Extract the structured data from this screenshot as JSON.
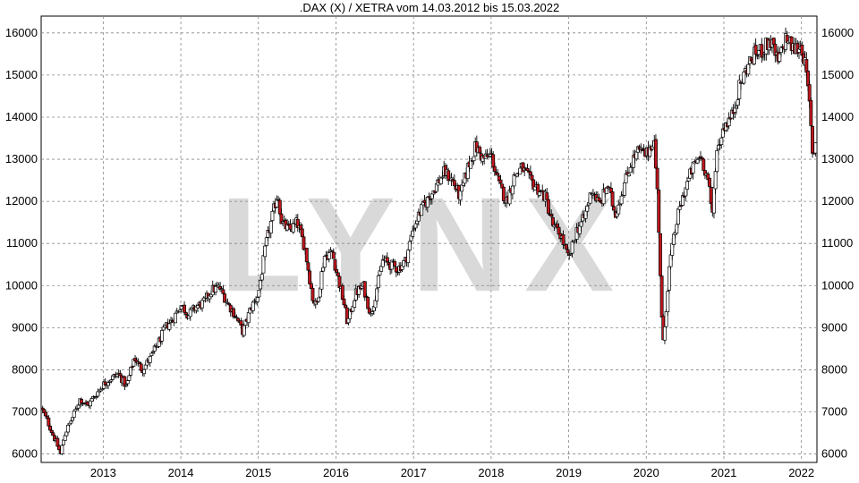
{
  "chart_data": {
    "type": "candlestick",
    "title": ".DAX (X) / XETRA vom 14.03.2012 bis 15.03.2022",
    "watermark": "LYNX",
    "xlabel": "",
    "ylabel": "",
    "xlim": [
      2012.2,
      2022.2
    ],
    "ylim": [
      5800,
      16400
    ],
    "yticks": [
      6000,
      7000,
      8000,
      9000,
      10000,
      11000,
      12000,
      13000,
      14000,
      15000,
      16000
    ],
    "xtick_labels": [
      "2013",
      "2014",
      "2015",
      "2016",
      "2017",
      "2018",
      "2019",
      "2020",
      "2021",
      "2022"
    ],
    "xtick_values": [
      2013,
      2014,
      2015,
      2016,
      2017,
      2018,
      2019,
      2020,
      2021,
      2022
    ],
    "grid": true,
    "y_axis_both_sides": true,
    "up_color": "#ffffff",
    "down_color": "#c0161c",
    "series_close": [
      [
        2012.2,
        7100
      ],
      [
        2012.3,
        6700
      ],
      [
        2012.4,
        6250
      ],
      [
        2012.45,
        6000
      ],
      [
        2012.5,
        6450
      ],
      [
        2012.6,
        6850
      ],
      [
        2012.7,
        7300
      ],
      [
        2012.8,
        7150
      ],
      [
        2012.9,
        7400
      ],
      [
        2013.0,
        7650
      ],
      [
        2013.1,
        7800
      ],
      [
        2013.2,
        7900
      ],
      [
        2013.3,
        7600
      ],
      [
        2013.4,
        8300
      ],
      [
        2013.5,
        8000
      ],
      [
        2013.6,
        8250
      ],
      [
        2013.7,
        8600
      ],
      [
        2013.8,
        9000
      ],
      [
        2013.9,
        9200
      ],
      [
        2014.0,
        9550
      ],
      [
        2014.1,
        9300
      ],
      [
        2014.2,
        9500
      ],
      [
        2014.3,
        9600
      ],
      [
        2014.4,
        9900
      ],
      [
        2014.5,
        9950
      ],
      [
        2014.6,
        9600
      ],
      [
        2014.7,
        9300
      ],
      [
        2014.8,
        8900
      ],
      [
        2014.9,
        9450
      ],
      [
        2015.0,
        9800
      ],
      [
        2015.1,
        11000
      ],
      [
        2015.2,
        11800
      ],
      [
        2015.25,
        12200
      ],
      [
        2015.3,
        11500
      ],
      [
        2015.4,
        11300
      ],
      [
        2015.5,
        11500
      ],
      [
        2015.6,
        10900
      ],
      [
        2015.7,
        9700
      ],
      [
        2015.75,
        9500
      ],
      [
        2015.85,
        10700
      ],
      [
        2015.95,
        10800
      ],
      [
        2016.0,
        10400
      ],
      [
        2016.1,
        9600
      ],
      [
        2016.15,
        9100
      ],
      [
        2016.25,
        9800
      ],
      [
        2016.35,
        10000
      ],
      [
        2016.45,
        9300
      ],
      [
        2016.5,
        9700
      ],
      [
        2016.6,
        10600
      ],
      [
        2016.7,
        10500
      ],
      [
        2016.8,
        10400
      ],
      [
        2016.9,
        10600
      ],
      [
        2017.0,
        11400
      ],
      [
        2017.1,
        11800
      ],
      [
        2017.2,
        12100
      ],
      [
        2017.3,
        12400
      ],
      [
        2017.4,
        12700
      ],
      [
        2017.5,
        12500
      ],
      [
        2017.6,
        12100
      ],
      [
        2017.7,
        12800
      ],
      [
        2017.8,
        13300
      ],
      [
        2017.9,
        13000
      ],
      [
        2018.0,
        13100
      ],
      [
        2018.1,
        12400
      ],
      [
        2018.2,
        12000
      ],
      [
        2018.3,
        12600
      ],
      [
        2018.4,
        12800
      ],
      [
        2018.5,
        12500
      ],
      [
        2018.6,
        12300
      ],
      [
        2018.7,
        12100
      ],
      [
        2018.8,
        11400
      ],
      [
        2018.9,
        11200
      ],
      [
        2019.0,
        10600
      ],
      [
        2019.1,
        11300
      ],
      [
        2019.2,
        11600
      ],
      [
        2019.3,
        12300
      ],
      [
        2019.4,
        11900
      ],
      [
        2019.5,
        12400
      ],
      [
        2019.6,
        11700
      ],
      [
        2019.7,
        12300
      ],
      [
        2019.8,
        12900
      ],
      [
        2019.9,
        13200
      ],
      [
        2020.0,
        13100
      ],
      [
        2020.1,
        13500
      ],
      [
        2020.15,
        12000
      ],
      [
        2020.2,
        9200
      ],
      [
        2020.22,
        8600
      ],
      [
        2020.3,
        10500
      ],
      [
        2020.4,
        11600
      ],
      [
        2020.5,
        12300
      ],
      [
        2020.6,
        12800
      ],
      [
        2020.7,
        13100
      ],
      [
        2020.8,
        12500
      ],
      [
        2020.85,
        11600
      ],
      [
        2020.9,
        13100
      ],
      [
        2021.0,
        13800
      ],
      [
        2021.1,
        14000
      ],
      [
        2021.2,
        14700
      ],
      [
        2021.3,
        15200
      ],
      [
        2021.4,
        15500
      ],
      [
        2021.5,
        15600
      ],
      [
        2021.6,
        15800
      ],
      [
        2021.7,
        15300
      ],
      [
        2021.8,
        15900
      ],
      [
        2021.9,
        15600
      ],
      [
        2022.0,
        15700
      ],
      [
        2022.05,
        15200
      ],
      [
        2022.1,
        14400
      ],
      [
        2022.15,
        13000
      ],
      [
        2022.2,
        13700
      ]
    ]
  }
}
